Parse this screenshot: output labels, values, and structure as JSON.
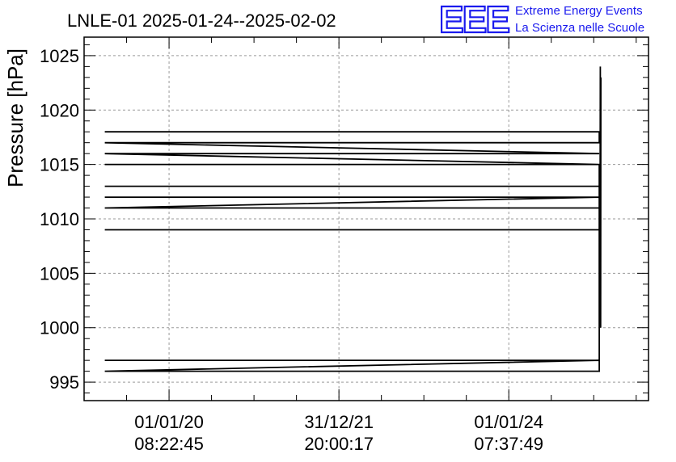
{
  "chart_data": {
    "type": "line",
    "title": "LNLE-01 2025-01-24--2025-02-02",
    "logo": {
      "mark": "EEE",
      "line1": "Extreme Energy Events",
      "line2": "La Scienza nelle Scuole",
      "color": "#1a1aee"
    },
    "ylabel": "Pressure [hPa]",
    "xlabel": "",
    "ylim": [
      993.3,
      1026.7
    ],
    "yticks": [
      995,
      1000,
      1005,
      1010,
      1015,
      1020,
      1025
    ],
    "xlim": [
      1546300800,
      1756000000
    ],
    "xticks": [
      {
        "t": 1577867000,
        "label_date": "01/01/20",
        "label_time": "08:22:45"
      },
      {
        "t": 1640980000,
        "label_date": "31/12/21",
        "label_time": "20:00:17"
      },
      {
        "t": 1704094000,
        "label_date": "01/01/24",
        "label_time": "07:37:49"
      }
    ],
    "grid": true,
    "series": [
      {
        "color": "#000000",
        "points": [
          [
            1554000000,
            1018
          ],
          [
            1737700000,
            1018
          ],
          [
            1737700000,
            1017
          ],
          [
            1554000000,
            1017
          ],
          [
            1737700000,
            1016
          ],
          [
            1554000000,
            1016
          ],
          [
            1737700000,
            1015
          ],
          [
            1554000000,
            1015
          ],
          [
            1737700000,
            1015
          ],
          [
            1737700000,
            1013
          ],
          [
            1554000000,
            1013
          ],
          [
            1737700000,
            1013
          ],
          [
            1737700000,
            1012
          ],
          [
            1554000000,
            1012
          ],
          [
            1737700000,
            1012
          ],
          [
            1737700000,
            1011
          ],
          [
            1554000000,
            1011
          ],
          [
            1737700000,
            1012
          ],
          [
            1737700000,
            1009
          ],
          [
            1554000000,
            1009
          ],
          [
            1737700000,
            1009
          ],
          [
            1737700000,
            997
          ],
          [
            1554000000,
            997
          ],
          [
            1737700000,
            997
          ],
          [
            1737700000,
            996
          ],
          [
            1554000000,
            996
          ],
          [
            1737700000,
            997
          ],
          [
            1737700000,
            996
          ],
          [
            1737700000,
            1000
          ],
          [
            1738000000,
            1010
          ],
          [
            1738100000,
            1024
          ],
          [
            1738200000,
            1000
          ],
          [
            1738300000,
            1023
          ]
        ]
      }
    ]
  }
}
